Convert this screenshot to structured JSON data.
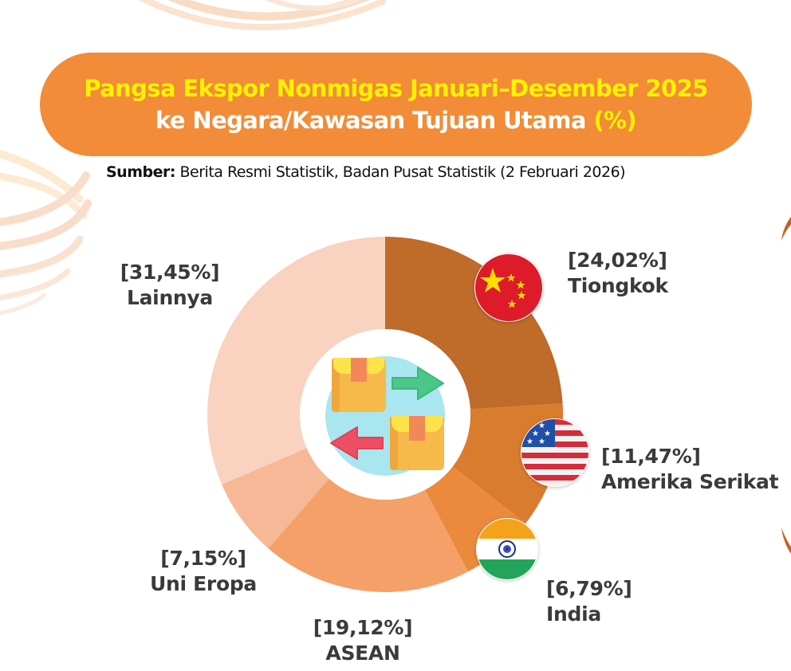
{
  "header": {
    "title_line1": "Pangsa Ekspor Nonmigas Januari–Desember 2025",
    "title_line2": "ke Negara/Kawasan Tujuan Utama",
    "title_unit": "(%)",
    "source_label": "Sumber:",
    "source_text": " Berita Resmi Statistik, Badan Pusat Statistik (2 Februari 2026)"
  },
  "center_icon": "boxes-exchange-icon",
  "colors": {
    "banner": "#F28C38",
    "title_yellow": "#FFF200",
    "label_text": "#3a3a3a"
  },
  "chart_data": {
    "type": "pie",
    "subtype": "donut",
    "title": "Pangsa Ekspor Nonmigas Januari–Desember 2025 ke Negara/Kawasan Tujuan Utama (%)",
    "categories": [
      "Tiongkok",
      "Amerika Serikat",
      "India",
      "ASEAN",
      "Uni Eropa",
      "Lainnya"
    ],
    "values": [
      24.02,
      11.47,
      6.79,
      19.12,
      7.15,
      31.45
    ],
    "value_labels": [
      "[24,02%]",
      "[11,47%]",
      "[6,79%]",
      "[19,12%]",
      "[7,15%]",
      "[31,45%]"
    ],
    "colors": [
      "#BF6B2A",
      "#D97C2E",
      "#EB8A3C",
      "#F4A068",
      "#F6B896",
      "#F9D3C0"
    ],
    "flags": [
      "china-flag-icon",
      "usa-flag-icon",
      "india-flag-icon",
      null,
      null,
      null
    ],
    "start_angle_deg": 0,
    "direction": "clockwise",
    "unit": "%",
    "legend": "none (inline labels)"
  },
  "labels": [
    {
      "value": "[24,02%]",
      "name": "Tiongkok"
    },
    {
      "value": "[11,47%]",
      "name": "Amerika Serikat"
    },
    {
      "value": "[6,79%]",
      "name": "India"
    },
    {
      "value": "[19,12%]",
      "name": "ASEAN"
    },
    {
      "value": "[7,15%]",
      "name": "Uni Eropa"
    },
    {
      "value": "[31,45%]",
      "name": "Lainnya"
    }
  ]
}
